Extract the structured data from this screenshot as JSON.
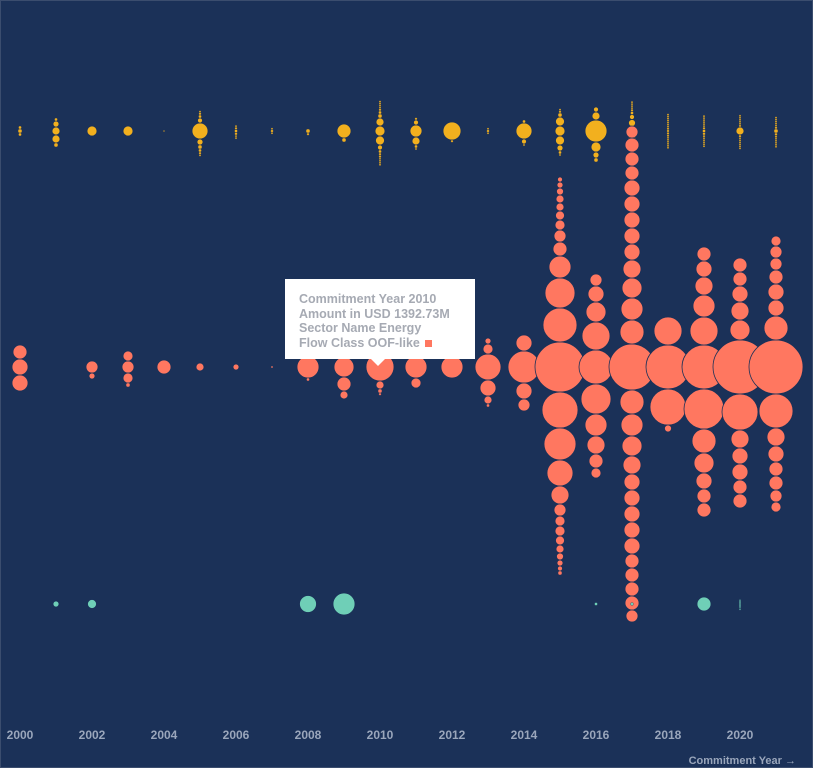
{
  "chart_data": {
    "type": "scatter",
    "description_style": "beeswarm",
    "x_axis": {
      "label": "Commitment Year →",
      "ticks": [
        "2000",
        "2002",
        "2004",
        "2006",
        "2008",
        "2010",
        "2012",
        "2014",
        "2016",
        "2018",
        "2020"
      ],
      "range": [
        2000,
        2021
      ]
    },
    "colors": {
      "background": "#1b3158",
      "ODA-like": "#f2b01e",
      "OOF-like": "#ff7760",
      "Vague (Official Finance)": "#6fcfb7"
    },
    "series": [
      {
        "color": "#f2b01e",
        "band": 0,
        "years": [
          {
            "year": 2000,
            "radii": [
              2,
              1.5,
              1.5
            ]
          },
          {
            "year": 2001,
            "radii": [
              4,
              4,
              3,
              2,
              1.5
            ]
          },
          {
            "year": 2002,
            "radii": [
              5
            ]
          },
          {
            "year": 2003,
            "radii": [
              5
            ]
          },
          {
            "year": 2004,
            "radii": [
              0.8
            ]
          },
          {
            "year": 2005,
            "radii": [
              8,
              3,
              2.5,
              2,
              1.5,
              1.5,
              1.2,
              1.2,
              1,
              1
            ]
          },
          {
            "year": 2006,
            "radii": [
              1.5,
              1.3,
              1.2,
              1,
              1,
              1
            ]
          },
          {
            "year": 2007,
            "radii": [
              1.3,
              1,
              1
            ]
          },
          {
            "year": 2008,
            "radii": [
              2,
              1.2
            ]
          },
          {
            "year": 2009,
            "radii": [
              7,
              2
            ]
          },
          {
            "year": 2010,
            "radii": [
              5,
              4.5,
              4,
              2.5,
              2,
              1.5,
              1.5,
              1.2,
              1.2,
              1.2,
              1,
              1,
              1,
              1,
              1,
              1,
              1,
              1
            ]
          },
          {
            "year": 2011,
            "radii": [
              6,
              4,
              2.5,
              1.5,
              1.2,
              1
            ]
          },
          {
            "year": 2012,
            "radii": [
              9,
              1.2
            ]
          },
          {
            "year": 2013,
            "radii": [
              1.3,
              1,
              1
            ]
          },
          {
            "year": 2014,
            "radii": [
              8,
              2.5,
              1.5,
              1
            ]
          },
          {
            "year": 2015,
            "radii": [
              5,
              4.5,
              4.5,
              3,
              2,
              1.5,
              1.2,
              1,
              1
            ]
          },
          {
            "year": 2016,
            "radii": [
              11,
              5,
              4,
              3,
              2.5,
              2
            ]
          },
          {
            "year": 2017,
            "radii": [
              4.5,
              4,
              3.5,
              3,
              2.5,
              2,
              1.5,
              1.5,
              1.2,
              1.2,
              1,
              1,
              1,
              1,
              1,
              1,
              1
            ]
          },
          {
            "year": 2018,
            "radii": [
              1.2,
              1.2,
              1.1,
              1.1,
              1,
              1,
              1,
              1,
              1,
              1,
              1,
              1,
              1,
              1,
              1,
              1,
              1
            ]
          },
          {
            "year": 2019,
            "radii": [
              1.5,
              1.3,
              1.2,
              1.1,
              1,
              1,
              1,
              1,
              1,
              1,
              1,
              1,
              1,
              1,
              1
            ]
          },
          {
            "year": 2020,
            "radii": [
              4,
              1.2,
              1.1,
              1,
              1,
              1,
              1,
              1,
              1,
              1,
              1,
              1,
              1,
              1
            ]
          },
          {
            "year": 2021,
            "radii": [
              2,
              1.3,
              1.2,
              1.1,
              1,
              1,
              1,
              1,
              1,
              1,
              1,
              1,
              1,
              1
            ]
          }
        ]
      },
      {
        "color": "#ff7760",
        "band": 1,
        "years": [
          {
            "year": 2000,
            "radii": [
              8,
              8,
              7
            ]
          },
          {
            "year": 2001,
            "radii": []
          },
          {
            "year": 2002,
            "radii": [
              6,
              3
            ]
          },
          {
            "year": 2003,
            "radii": [
              6,
              5,
              5,
              2
            ]
          },
          {
            "year": 2004,
            "radii": [
              7
            ]
          },
          {
            "year": 2005,
            "radii": [
              4
            ]
          },
          {
            "year": 2006,
            "radii": [
              3
            ]
          },
          {
            "year": 2007,
            "radii": [
              1
            ]
          },
          {
            "year": 2008,
            "radii": [
              11,
              1.5
            ]
          },
          {
            "year": 2009,
            "radii": [
              10,
              7,
              5,
              4,
              3
            ]
          },
          {
            "year": 2010,
            "radii": [
              14,
              4,
              3,
              2,
              1.5,
              1.2
            ]
          },
          {
            "year": 2011,
            "radii": [
              11,
              5,
              5
            ]
          },
          {
            "year": 2012,
            "radii": [
              11
            ]
          },
          {
            "year": 2013,
            "radii": [
              13,
              8,
              5,
              4,
              3,
              1.5
            ]
          },
          {
            "year": 2014,
            "radii": [
              16,
              8,
              8,
              6
            ]
          },
          {
            "year": 2015,
            "radii": [
              25,
              18,
              17,
              16,
              15,
              13,
              11,
              9,
              7,
              6,
              6,
              5,
              5,
              5,
              4.5,
              4.5,
              4,
              4,
              4,
              3.5,
              3.5,
              3,
              3,
              2.5,
              2.5,
              2
            ]
          },
          {
            "year": 2016,
            "radii": [
              17,
              15,
              14,
              11,
              10,
              9,
              8,
              7,
              6,
              5
            ]
          },
          {
            "year": 2017,
            "radii": [
              23,
              12,
              12,
              11,
              11,
              10,
              10,
              9,
              9,
              8,
              8,
              8,
              8,
              8,
              8,
              8,
              8,
              8,
              8,
              7,
              7,
              7,
              7,
              7,
              7,
              7,
              6,
              6
            ]
          },
          {
            "year": 2018,
            "radii": [
              22,
              18,
              14,
              3.5
            ]
          },
          {
            "year": 2019,
            "radii": [
              22,
              20,
              14,
              12,
              11,
              10,
              9,
              8,
              8,
              7,
              7,
              7
            ]
          },
          {
            "year": 2020,
            "radii": [
              27,
              18,
              10,
              9,
              9,
              8,
              8,
              8,
              7,
              7,
              7,
              7
            ]
          },
          {
            "year": 2021,
            "radii": [
              27,
              17,
              12,
              9,
              8,
              8,
              8,
              7,
              7,
              7,
              6,
              6,
              6,
              5,
              5
            ]
          }
        ]
      },
      {
        "color": "#6fcfb7",
        "band": 2,
        "years": [
          {
            "year": 2001,
            "radii": [
              3
            ]
          },
          {
            "year": 2002,
            "radii": [
              4.5
            ]
          },
          {
            "year": 2008,
            "radii": [
              8.5
            ]
          },
          {
            "year": 2009,
            "radii": [
              11
            ]
          },
          {
            "year": 2016,
            "radii": [
              1.5
            ]
          },
          {
            "year": 2017,
            "radii": [
              1.5
            ]
          },
          {
            "year": 2019,
            "radii": [
              7
            ]
          },
          {
            "year": 2020,
            "radii": [
              1,
              1,
              1,
              0.8,
              0.8,
              0.8
            ]
          }
        ]
      }
    ],
    "tooltip": {
      "year_line": "Commitment Year 2010",
      "amount_line": "Amount in USD 1392.73M",
      "sector_line": "Sector Name Energy",
      "flow_line": "Flow Class OOF-like"
    }
  }
}
